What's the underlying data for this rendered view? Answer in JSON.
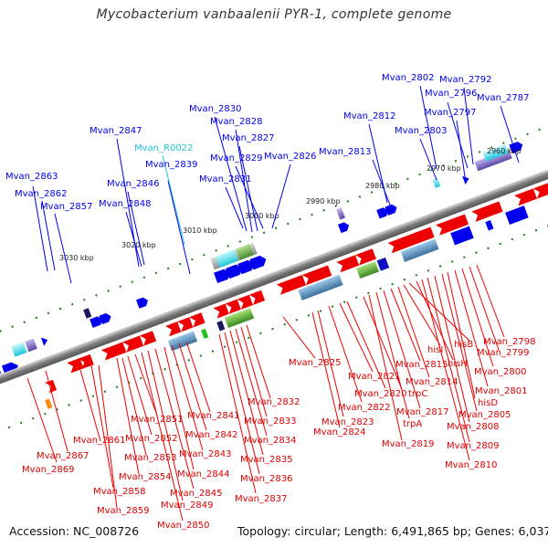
{
  "title": "Mycobacterium vanbaalenii PYR-1, complete genome",
  "footer": {
    "accession": "Accession: NC_008726",
    "topology": "Topology: circular; Length: 6,491,865 bp; Genes: 6,037"
  },
  "colors": {
    "forward": "#0000ee",
    "reverse": "#ee0000",
    "rna": "#22c4d8",
    "backbone": "#808080",
    "ticks": "#1a7a1a"
  },
  "scale_labels": [
    "3030 kbp",
    "3020 kbp",
    "3010 kbp",
    "3000 kbp",
    "2990 kbp",
    "2980 kbp",
    "2970 kbp",
    "2960 kbp"
  ],
  "top_labels": [
    "Mvan_2863",
    "Mvan_2862",
    "Mvan_2857",
    "Mvan_2847",
    "Mvan_2846",
    "Mvan_2848",
    "Mvan_R0022",
    "Mvan_2839",
    "Mvan_2830",
    "Mvan_2828",
    "Mvan_2827",
    "Mvan_2829",
    "Mvan_2831",
    "Mvan_2826",
    "Mvan_2813",
    "Mvan_2812",
    "Mvan_2802",
    "Mvan_2803",
    "Mvan_2796",
    "Mvan_2797",
    "Mvan_2792",
    "Mvan_2787"
  ],
  "bottom_labels": [
    "Mvan_2869",
    "Mvan_2867",
    "Mvan_2861",
    "Mvan_2858",
    "Mvan_2859",
    "Mvan_2854",
    "Mvan_2853",
    "Mvan_2852",
    "Mvan_2851",
    "Mvan_2850",
    "Mvan_2849",
    "Mvan_2845",
    "Mvan_2844",
    "Mvan_2843",
    "Mvan_2842",
    "Mvan_2841",
    "Mvan_2837",
    "Mvan_2836",
    "Mvan_2835",
    "Mvan_2834",
    "Mvan_2833",
    "Mvan_2832",
    "Mvan_2825",
    "Mvan_2824",
    "Mvan_2823",
    "Mvan_2822",
    "Mvan_2821",
    "Mvan_2820",
    "trpC",
    "Mvan_2819",
    "trpA",
    "Mvan_2817",
    "Mvan_2815",
    "Mvan_2814",
    "hisI",
    "hisB",
    "hisH",
    "Mvan_2810",
    "Mvan_2809",
    "Mvan_2808",
    "Mvan_2805",
    "hisD",
    "Mvan_2801",
    "Mvan_2800",
    "Mvan_2799",
    "Mvan_2798"
  ]
}
